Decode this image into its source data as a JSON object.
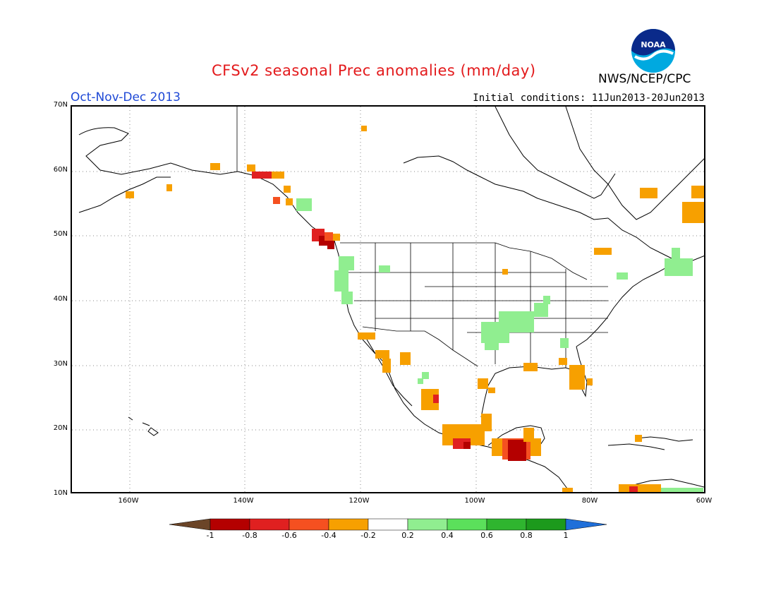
{
  "header": {
    "title": "CFSv2 seasonal Prec anomalies (mm/day)",
    "season": "Oct-Nov-Dec 2013",
    "initial_conditions": "Initial conditions: 11Jun2013-20Jun2013",
    "agency": "NWS/NCEP/CPC",
    "logo_text": "NOAA"
  },
  "map": {
    "lat_labels": [
      "70N",
      "60N",
      "50N",
      "40N",
      "30N",
      "20N",
      "10N"
    ],
    "lon_labels": [
      "160W",
      "140W",
      "120W",
      "100W",
      "80W",
      "60W"
    ],
    "extent": {
      "lon_min": -170,
      "lon_max": -60,
      "lat_min": 10,
      "lat_max": 70
    }
  },
  "legend": {
    "tick_labels": [
      "-1",
      "-0.8",
      "-0.6",
      "-0.4",
      "-0.2",
      "0.2",
      "0.4",
      "0.6",
      "0.8",
      "1"
    ],
    "colors": {
      "below_min": "#6b4528",
      "bins": [
        "#b40000",
        "#e02020",
        "#f55020",
        "#f7a000",
        "#ffffff",
        "#90ee90",
        "#5be05b",
        "#2fb52f",
        "#1c9a1c"
      ],
      "above_max": "#1f6fd9"
    }
  },
  "colors": {
    "title": "#e31a1c",
    "season": "#1f49d6"
  }
}
